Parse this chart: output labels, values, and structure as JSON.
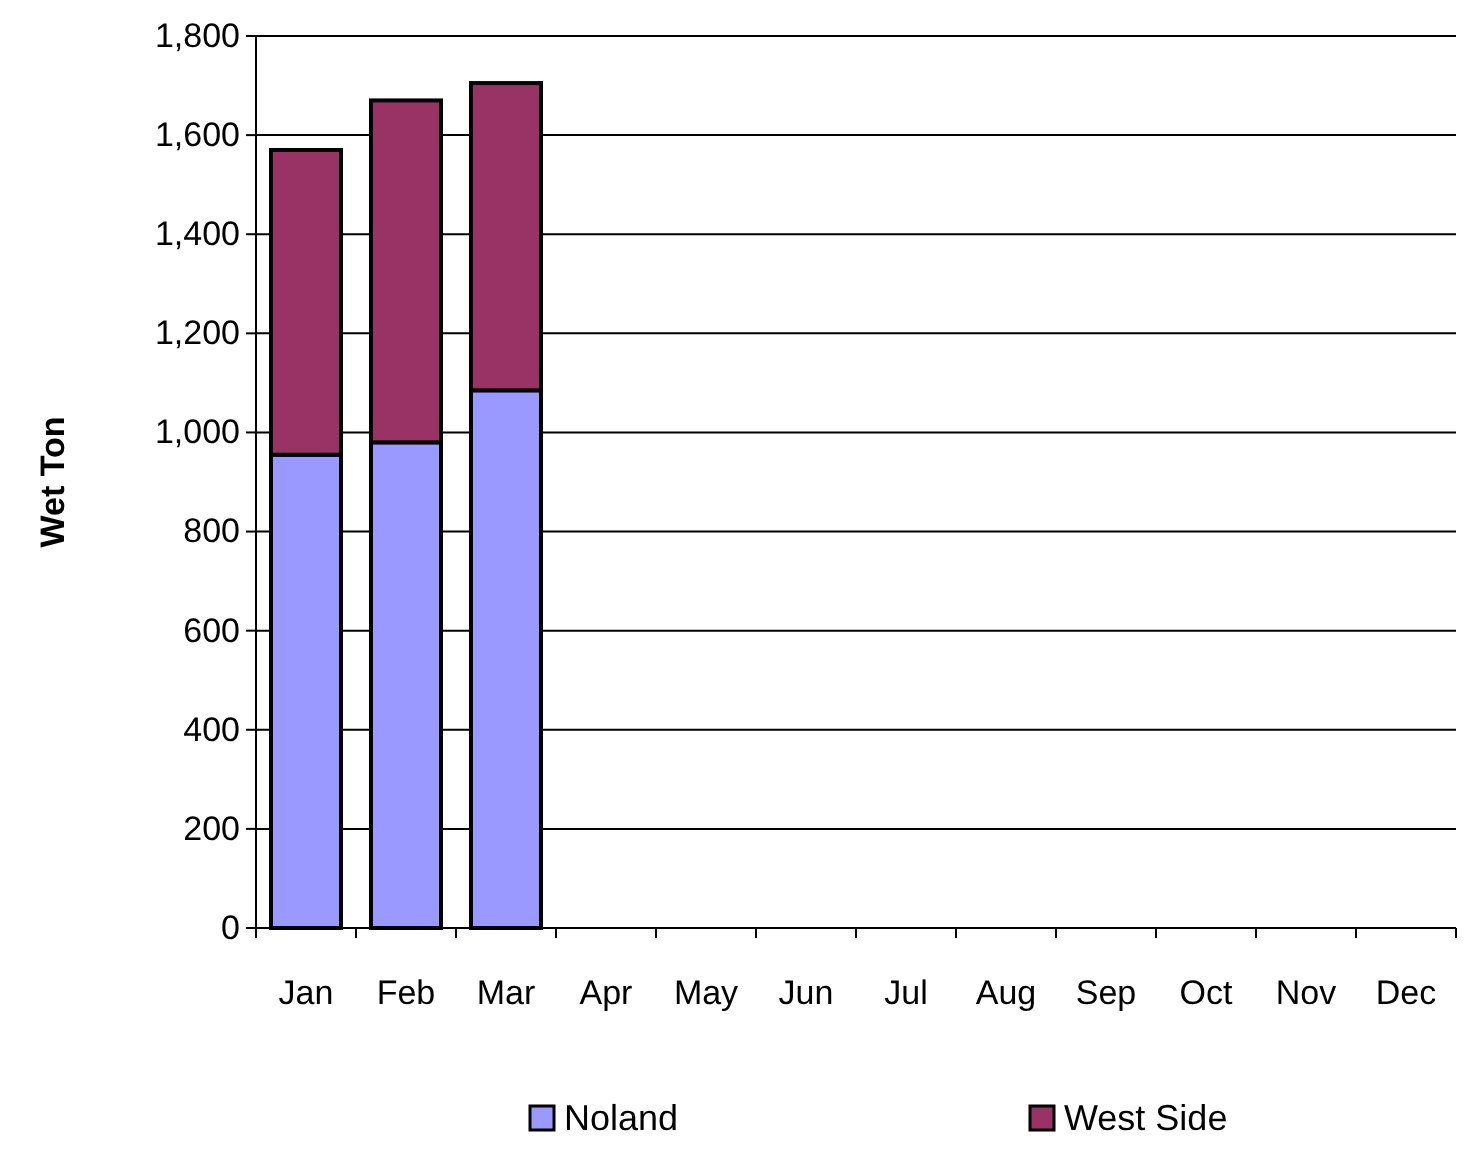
{
  "chart_data": {
    "type": "bar",
    "ylabel": "Wet Ton",
    "categories": [
      "Jan",
      "Feb",
      "Mar",
      "Apr",
      "May",
      "Jun",
      "Jul",
      "Aug",
      "Sep",
      "Oct",
      "Nov",
      "Dec"
    ],
    "stacked": true,
    "series": [
      {
        "name": "Noland",
        "color": "#9999ff",
        "values": [
          955,
          980,
          1085,
          null,
          null,
          null,
          null,
          null,
          null,
          null,
          null,
          null
        ]
      },
      {
        "name": "West Side",
        "color": "#993366",
        "values": [
          615,
          690,
          620,
          null,
          null,
          null,
          null,
          null,
          null,
          null,
          null,
          null
        ]
      }
    ],
    "ylim": [
      0,
      1800
    ],
    "yticks": [
      {
        "value": 0,
        "label": "0"
      },
      {
        "value": 200,
        "label": "200"
      },
      {
        "value": 400,
        "label": "400"
      },
      {
        "value": 600,
        "label": "600"
      },
      {
        "value": 800,
        "label": "800"
      },
      {
        "value": 1000,
        "label": "1,000"
      },
      {
        "value": 1200,
        "label": "1,200"
      },
      {
        "value": 1400,
        "label": "1,400"
      },
      {
        "value": 1600,
        "label": "1,600"
      },
      {
        "value": 1800,
        "label": "1,800"
      }
    ],
    "grid": "y",
    "legend": "bottom"
  }
}
